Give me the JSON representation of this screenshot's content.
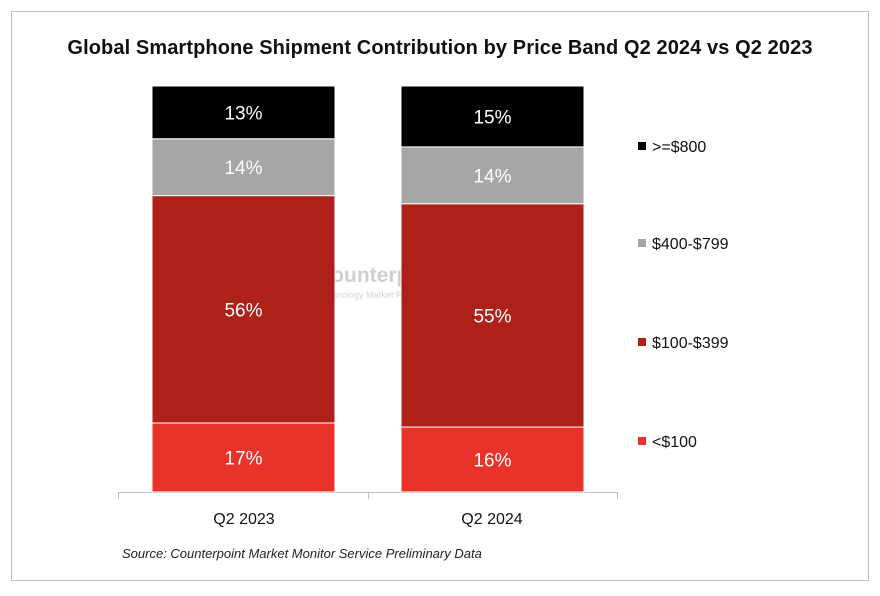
{
  "chart_data": {
    "type": "bar",
    "stacked": true,
    "title": "Global Smartphone Shipment Contribution by Price Band Q2 2024 vs Q2 2023",
    "categories": [
      "Q2 2023",
      "Q2 2024"
    ],
    "series": [
      {
        "name": "<$100",
        "values": [
          17,
          16
        ],
        "labels": [
          "17%",
          "16%"
        ],
        "color": "#e8322a"
      },
      {
        "name": "$100-$399",
        "values": [
          56,
          55
        ],
        "labels": [
          "56%",
          "55%"
        ],
        "color": "#ad2118"
      },
      {
        "name": "$400-$799",
        "values": [
          14,
          14
        ],
        "labels": [
          "14%",
          "14%"
        ],
        "color": "#a6a6a6"
      },
      {
        "name": ">=$800",
        "values": [
          13,
          15
        ],
        "labels": [
          "13%",
          "15%"
        ],
        "color": "#000000"
      }
    ],
    "ylim": [
      0,
      100
    ],
    "legend_position": "right",
    "grid": false
  },
  "watermark": {
    "name": "Counterpoint",
    "subtitle": "Technology Market Research"
  },
  "source": "Source: Counterpoint Market Monitor Service Preliminary Data"
}
